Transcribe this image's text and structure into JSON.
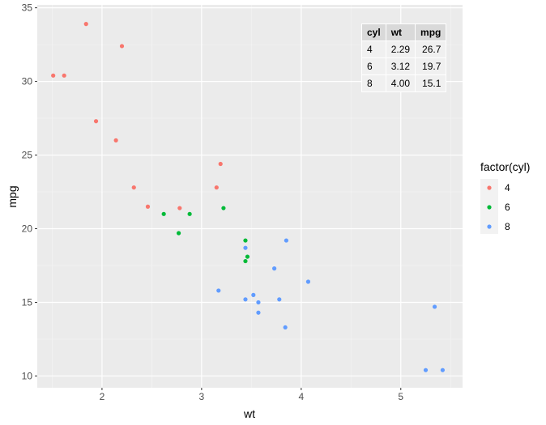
{
  "chart_data": {
    "type": "scatter",
    "xlabel": "wt",
    "ylabel": "mpg",
    "xlim": [
      1.35,
      5.62
    ],
    "ylim": [
      9.2,
      35.2
    ],
    "x_ticks": [
      2,
      3,
      4,
      5
    ],
    "y_ticks": [
      10,
      15,
      20,
      25,
      30,
      35
    ],
    "grid": true,
    "legend": {
      "title": "factor(cyl)",
      "position": "right"
    },
    "series": [
      {
        "name": "4",
        "color": "#F8766D",
        "points": [
          [
            2.2,
            32.4
          ],
          [
            1.62,
            30.4
          ],
          [
            1.84,
            33.9
          ],
          [
            2.32,
            22.8
          ],
          [
            2.14,
            26.0
          ],
          [
            1.51,
            30.4
          ],
          [
            2.78,
            21.4
          ],
          [
            3.19,
            24.4
          ],
          [
            3.15,
            22.8
          ],
          [
            2.46,
            21.5
          ],
          [
            1.94,
            27.3
          ]
        ]
      },
      {
        "name": "6",
        "color": "#00BA38",
        "points": [
          [
            2.62,
            21.0
          ],
          [
            2.88,
            21.0
          ],
          [
            3.22,
            21.4
          ],
          [
            3.46,
            18.1
          ],
          [
            3.44,
            19.2
          ],
          [
            3.44,
            17.8
          ],
          [
            2.77,
            19.7
          ]
        ]
      },
      {
        "name": "8",
        "color": "#619CFF",
        "points": [
          [
            3.44,
            18.7
          ],
          [
            3.57,
            14.3
          ],
          [
            4.07,
            16.4
          ],
          [
            3.73,
            17.3
          ],
          [
            3.78,
            15.2
          ],
          [
            5.25,
            10.4
          ],
          [
            5.42,
            10.4
          ],
          [
            5.34,
            14.7
          ],
          [
            3.52,
            15.5
          ],
          [
            3.44,
            15.2
          ],
          [
            3.84,
            13.3
          ],
          [
            3.85,
            19.2
          ],
          [
            3.17,
            15.8
          ],
          [
            3.57,
            15.0
          ]
        ]
      }
    ]
  },
  "inset_table": {
    "headers": [
      "cyl",
      "wt",
      "mpg"
    ],
    "rows": [
      [
        "4",
        "2.29",
        "26.7"
      ],
      [
        "6",
        "3.12",
        "19.7"
      ],
      [
        "8",
        "4.00",
        "15.1"
      ]
    ]
  }
}
